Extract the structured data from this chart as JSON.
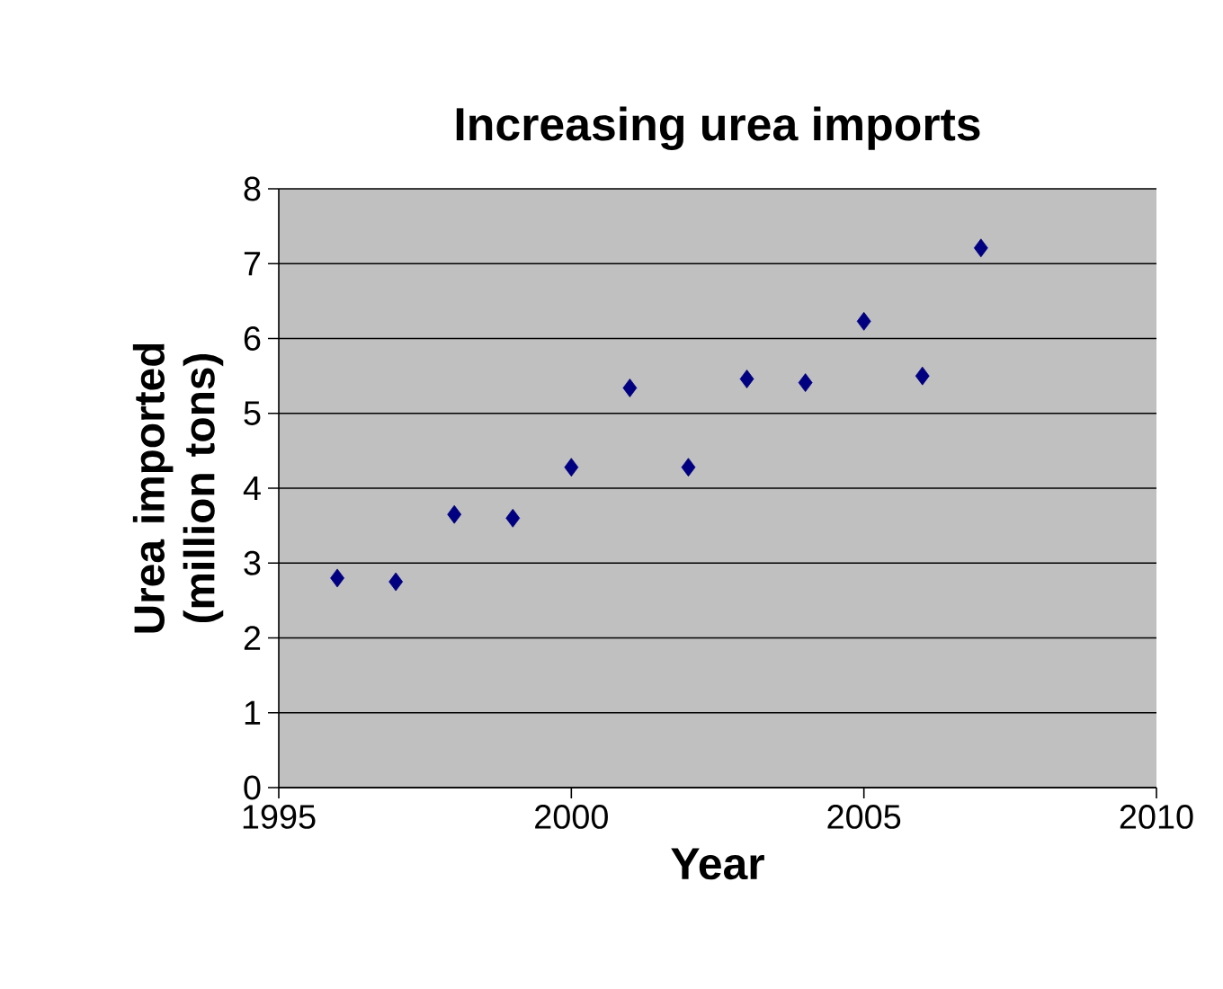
{
  "chart_data": {
    "type": "scatter",
    "title": "Increasing urea imports",
    "xlabel": "Year",
    "ylabel": "Urea imported (million tons)",
    "x": [
      1996,
      1997,
      1998,
      1999,
      2000,
      2001,
      2002,
      2003,
      2004,
      2005,
      2006,
      2007
    ],
    "values": [
      2.8,
      2.75,
      3.65,
      3.6,
      4.28,
      5.34,
      4.28,
      5.46,
      5.41,
      6.23,
      5.5,
      7.21
    ],
    "color": "#000080",
    "marker": "diamond",
    "xlim": [
      1995,
      2010
    ],
    "xticks": [
      1995,
      2000,
      2005,
      2010
    ],
    "ylim": [
      0,
      8
    ],
    "yticks": [
      0,
      1,
      2,
      3,
      4,
      5,
      6,
      7,
      8
    ],
    "grid": "y"
  }
}
